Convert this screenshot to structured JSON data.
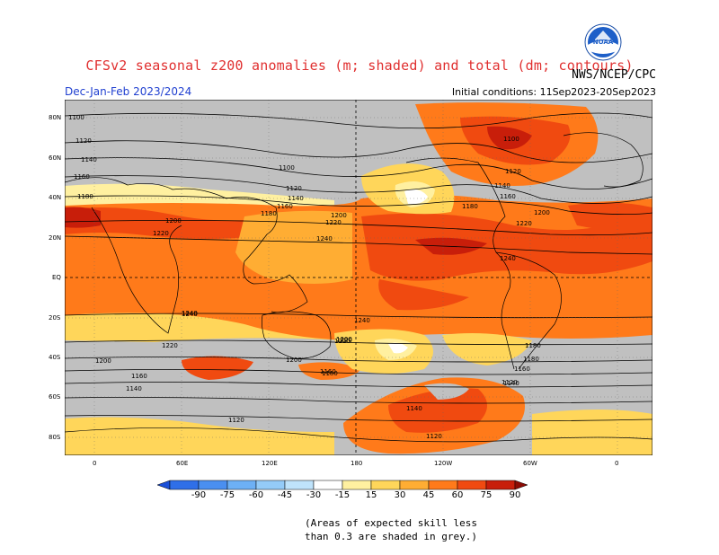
{
  "header": {
    "title": "CFSv2 seasonal z200 anomalies (m; shaded) and total (dm; contours)",
    "agency": "NWS/NCEP/CPC",
    "season": "Dec-Jan-Feb 2023/2024",
    "initial_conditions": "Initial conditions: 11Sep2023-20Sep2023",
    "logo_text": "NOAA"
  },
  "map": {
    "lat_labels": [
      "80N",
      "60N",
      "40N",
      "20N",
      "EQ",
      "20S",
      "40S",
      "60S",
      "80S"
    ],
    "lon_labels": [
      "0",
      "60E",
      "120E",
      "180",
      "120W",
      "60W",
      "0"
    ],
    "contour_labels": [
      "1100",
      "1120",
      "1140",
      "1160",
      "1180",
      "1200",
      "1220",
      "1240",
      "1100",
      "1120",
      "1140",
      "1160",
      "1180",
      "1200",
      "1220",
      "1240",
      "1240",
      "1220",
      "1200",
      "1180",
      "1160",
      "1140",
      "1120",
      "1100",
      "1120",
      "1140",
      "1160",
      "1180",
      "1200",
      "1220",
      "1240",
      "1240",
      "1220",
      "1200",
      "1180",
      "1160",
      "1140",
      "1120",
      "1140",
      "1120",
      "1180",
      "1200",
      "1220",
      "1160"
    ],
    "colors": {
      "grey": "#c0c0c0",
      "yellow_light": "#fff0a0",
      "yellow": "#ffd65a",
      "orange_light": "#ffad33",
      "orange": "#ff7a1a",
      "red_orange": "#f04a10",
      "red": "#c81e0a",
      "white": "#ffffff"
    }
  },
  "colorbar": {
    "ticks": [
      "-90",
      "-75",
      "-60",
      "-45",
      "-30",
      "-15",
      "15",
      "30",
      "45",
      "60",
      "75",
      "90"
    ],
    "colors": [
      "#1a4fd8",
      "#2f6fe8",
      "#4a8ff0",
      "#6db0f5",
      "#94cbf8",
      "#bfe3fb",
      "#ffffff",
      "#fff0a0",
      "#ffd65a",
      "#ffad33",
      "#ff7a1a",
      "#f04a10",
      "#c81e0a",
      "#8c0c04"
    ]
  },
  "footnote": {
    "line1": "(Areas of expected skill less",
    "line2": "than 0.3 are shaded in grey.)"
  }
}
